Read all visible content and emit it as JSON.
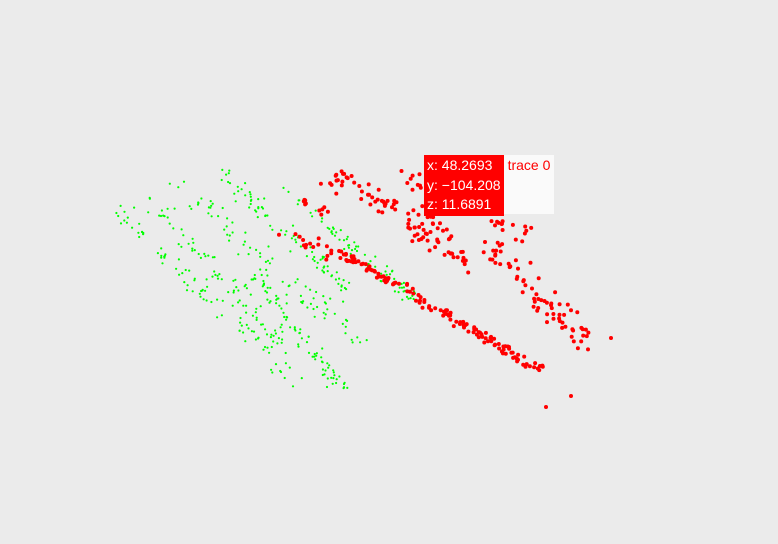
{
  "chart_data": {
    "type": "scatter3d",
    "series": [
      {
        "name": "trace 0",
        "color": "#ff0000",
        "points": [
          {
            "x": 48.2693,
            "y": -104.208,
            "z": 11.6891
          }
        ]
      },
      {
        "color": "#00ff00",
        "points": []
      }
    ],
    "hover": {
      "trace_name": "trace 0",
      "x_line": "x: 48.2693",
      "y_line": "y: −104.208",
      "z_line": "z: 11.6891"
    },
    "background_color": "#ebebeb",
    "grid": false,
    "axes_visible": false
  }
}
